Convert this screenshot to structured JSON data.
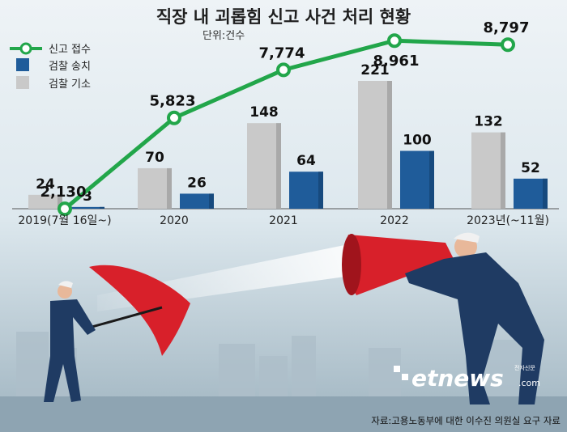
{
  "chart_data": {
    "type": "bar",
    "title": "직장 내 괴롭힘 신고 사건 처리 현황",
    "unit": "단위:건수",
    "categories": [
      "2019(7월 16일~)",
      "2020",
      "2021",
      "2022",
      "2023년(~11월)"
    ],
    "series": [
      {
        "name": "신고 접수",
        "kind": "line",
        "color": "#22a64a",
        "values": [
          2130,
          5823,
          7774,
          8961,
          8797
        ],
        "labels": [
          "2,130",
          "5,823",
          "7,774",
          "8,961",
          "8,797"
        ]
      },
      {
        "name": "검찰 송치",
        "kind": "bar",
        "color": "#1f5c9a",
        "values": [
          3,
          26,
          64,
          100,
          52
        ],
        "labels": [
          "3",
          "26",
          "64",
          "100",
          "52"
        ]
      },
      {
        "name": "검찰 기소",
        "kind": "bar",
        "color": "#c9c9c9",
        "values": [
          24,
          70,
          148,
          221,
          132
        ],
        "labels": [
          "24",
          "70",
          "148",
          "221",
          "132"
        ]
      }
    ],
    "legend_position": "top-left"
  },
  "footer": {
    "source": "자료:고용노동부에 대한 이수진 의원실 요구 자료",
    "logo": "etnews",
    "logo_sub": "전자신문",
    "logo_domain": ".com"
  }
}
